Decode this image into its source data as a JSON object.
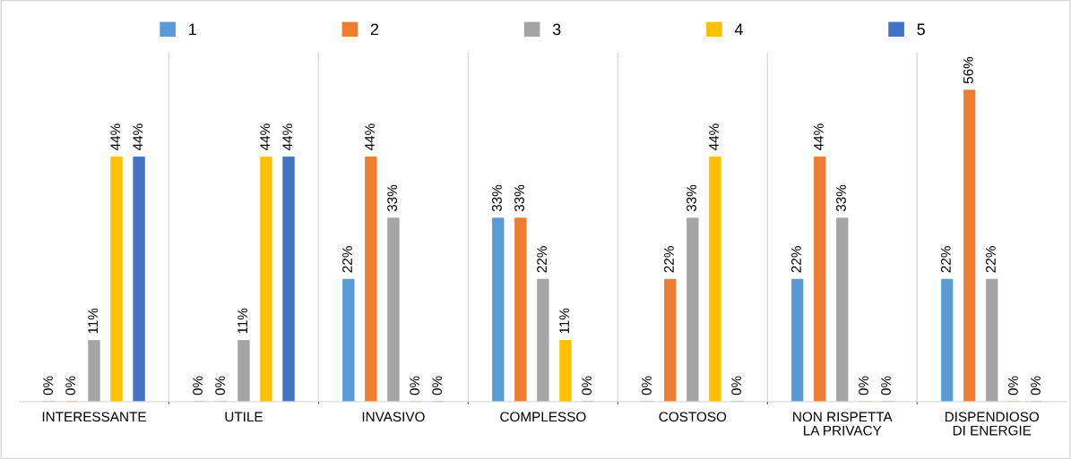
{
  "chart_data": {
    "type": "bar",
    "categories": [
      "INTERESSANTE",
      "UTILE",
      "INVASIVO",
      "COMPLESSO",
      "COSTOSO",
      "NON RISPETTA\nLA PRIVACY",
      "DISPENDIOSO\nDI ENERGIE"
    ],
    "series": [
      {
        "name": "1",
        "color": "#5b9bd5",
        "values": [
          0,
          0,
          22,
          33,
          0,
          22,
          22
        ],
        "value_labels": [
          "0%",
          "0%",
          "22%",
          "33%",
          "0%",
          "22%",
          "22%"
        ]
      },
      {
        "name": "2",
        "color": "#ed7d31",
        "values": [
          0,
          0,
          44,
          33,
          22,
          44,
          56
        ],
        "value_labels": [
          "0%",
          "0%",
          "44%",
          "33%",
          "22%",
          "44%",
          "56%"
        ]
      },
      {
        "name": "3",
        "color": "#a5a5a5",
        "values": [
          11,
          11,
          33,
          22,
          33,
          33,
          22
        ],
        "value_labels": [
          "11%",
          "11%",
          "33%",
          "22%",
          "33%",
          "33%",
          "22%"
        ]
      },
      {
        "name": "4",
        "color": "#ffc000",
        "values": [
          44,
          44,
          0,
          11,
          44,
          0,
          0
        ],
        "value_labels": [
          "44%",
          "44%",
          "0%",
          "11%",
          "44%",
          "0%",
          "0%"
        ]
      },
      {
        "name": "5",
        "color": "#4472c4",
        "values": [
          44,
          44,
          0,
          0,
          0,
          0,
          0
        ],
        "value_labels": [
          "44%",
          "44%",
          "0%",
          "0%",
          "0%",
          "0%",
          "0%"
        ]
      }
    ],
    "legend": "top",
    "grid": "x",
    "tick_labels": "x"
  }
}
